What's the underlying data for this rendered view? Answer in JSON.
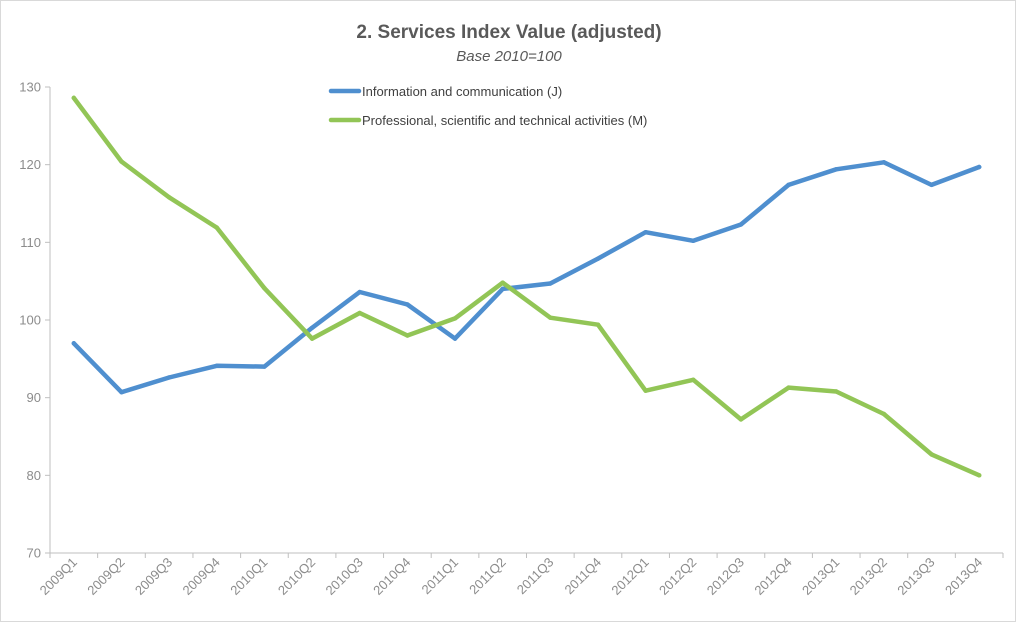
{
  "chart_data": {
    "type": "line",
    "title": "2. Services Index Value (adjusted)",
    "subtitle": "Base 2010=100",
    "xlabel": "",
    "ylabel": "",
    "ylim": [
      70,
      130
    ],
    "yticks": [
      70,
      80,
      90,
      100,
      110,
      120,
      130
    ],
    "grid": false,
    "legend_position": "top-center",
    "categories": [
      "2009Q1",
      "2009Q2",
      "2009Q3",
      "2009Q4",
      "2010Q1",
      "2010Q2",
      "2010Q3",
      "2010Q4",
      "2011Q1",
      "2011Q2",
      "2011Q3",
      "2011Q4",
      "2012Q1",
      "2012Q2",
      "2012Q3",
      "2012Q4",
      "2013Q1",
      "2013Q2",
      "2013Q3",
      "2013Q4"
    ],
    "series": [
      {
        "name": "Information and communication (J)",
        "color": "#4f8fcf",
        "values": [
          97.0,
          90.7,
          92.6,
          94.1,
          94.0,
          99.0,
          103.6,
          102.0,
          97.6,
          104.0,
          104.7,
          107.9,
          111.3,
          110.2,
          112.3,
          117.4,
          119.4,
          120.3,
          117.4,
          119.7
        ]
      },
      {
        "name": "Professional, scientific and technical activities (M)",
        "color": "#92c556",
        "values": [
          128.6,
          120.4,
          115.8,
          111.9,
          104.1,
          97.6,
          100.9,
          98.0,
          100.2,
          104.8,
          100.3,
          99.4,
          90.9,
          92.3,
          87.2,
          91.3,
          90.8,
          87.9,
          82.7,
          80.0
        ]
      }
    ]
  }
}
